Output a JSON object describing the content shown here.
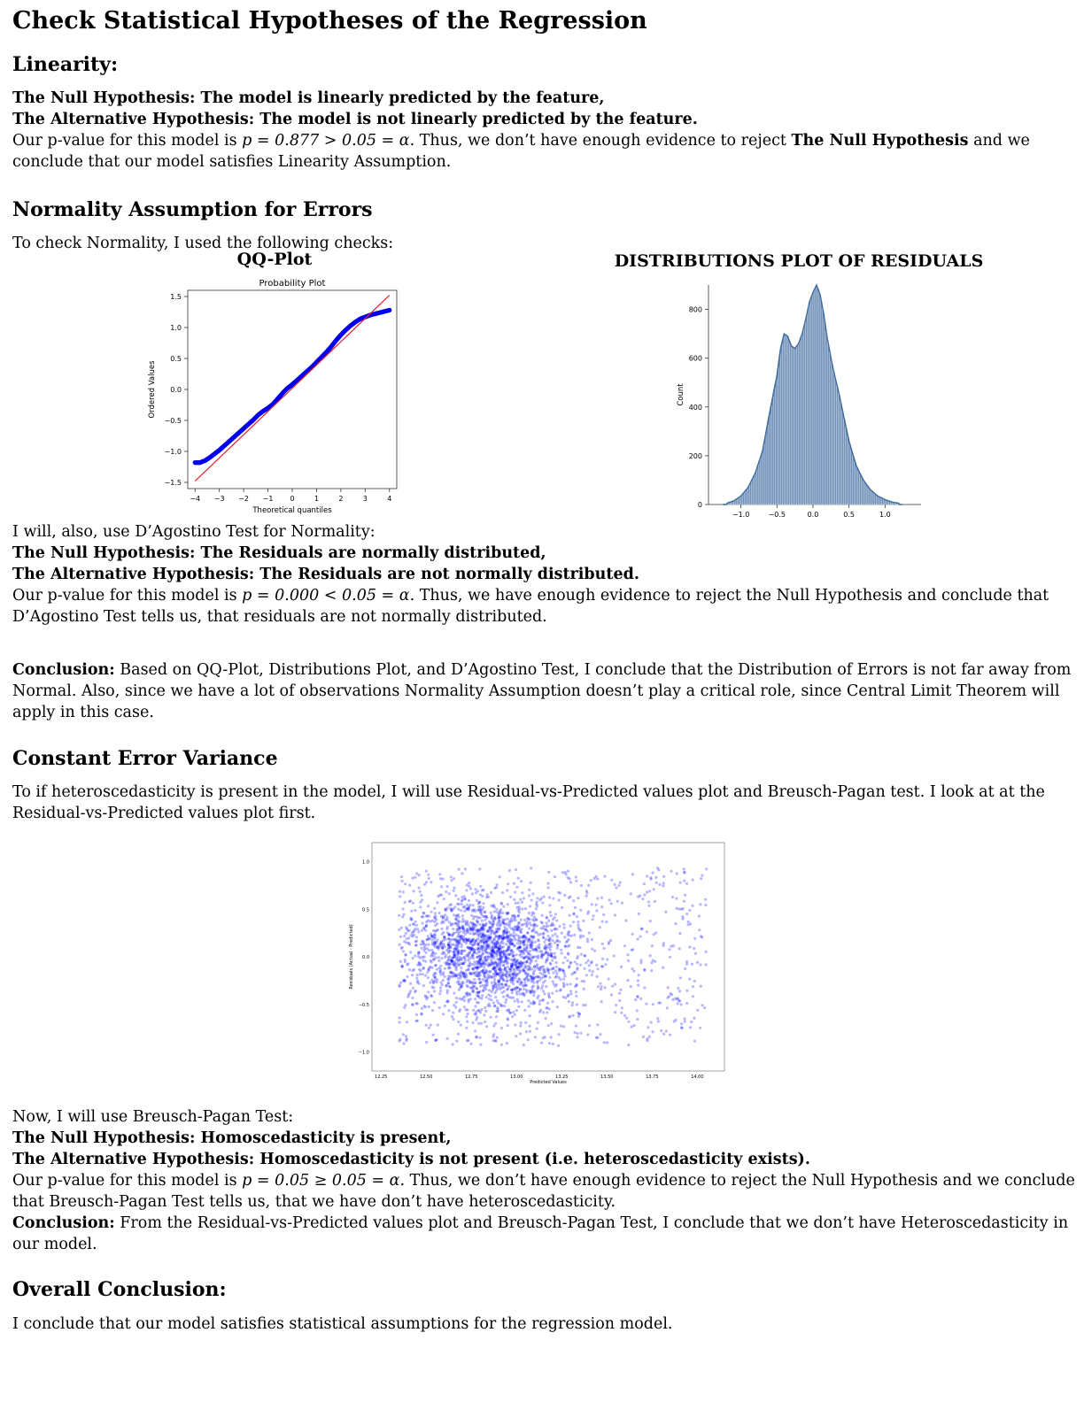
{
  "title": "Check Statistical Hypotheses of the Regression",
  "linearity": {
    "heading": "Linearity:",
    "null_label": "The Null Hypothesis:",
    "null_text": "The model is linearly predicted by the feature,",
    "alt_label": "The Alternative Hypothesis:",
    "alt_text": "The model is not linearly predicted by the feature.",
    "p_line1_pre": "Our p-value for this model is ",
    "p_math": "p = 0.877 > 0.05 = α.",
    "p_line1_post": " Thus, we don’t have enough evidence to reject ",
    "p_line1_bold": "The Null Hypothesis",
    "p_line1_end": " and we",
    "p_line2": "conclude that our model satisfies Linearity Assumption."
  },
  "normality": {
    "heading": "Normality Assumption for Errors",
    "intro": "To check Normality, I used the following checks:",
    "qq_title": "QQ-Plot",
    "dist_title": "DISTRIBUTIONS PLOT OF RESIDUALS",
    "dagostino_intro": "I will, also, use D’Agostino Test for Normality:",
    "null_label": "The Null Hypothesis:",
    "null_text": "The Residuals are normally distributed,",
    "alt_label": "The Alternative Hypothesis:",
    "alt_text": "The Residuals are not normally distributed.",
    "p_line1_pre": "Our p-value for this model is ",
    "p_math": "p = 0.000 < 0.05 = α.",
    "p_line1_post": " Thus, we have enough evidence to reject the Null Hypothesis and conclude that",
    "p_line2": "D’Agostino Test tells us, that residuals are not normally distributed.",
    "conclusion_label": "Conclusion:",
    "conclusion_line1": " Based on QQ-Plot, Distributions Plot, and D’Agostino Test, I conclude that the Distribution of Errors is not far away from",
    "conclusion_line2": "Normal. Also, since we have a lot of observations Normality Assumption doesn’t play a critical role, since Central Limit Theorem will",
    "conclusion_line3": "apply in this case."
  },
  "variance": {
    "heading": "Constant Error Variance",
    "intro_line1": "To if heteroscedasticity is present in the model, I will use Residual-vs-Predicted values plot and Breusch-Pagan test. I look at at the",
    "intro_line2": "Residual-vs-Predicted values plot first.",
    "bp_intro": "Now, I will use Breusch-Pagan Test:",
    "null_label": "The Null Hypothesis:",
    "null_text": "Homoscedasticity is present,",
    "alt_label": "The Alternative Hypothesis:",
    "alt_text": "Homoscedasticity is not present (i.e. heteroscedasticity exists).",
    "p_line1_pre": "Our p-value for this model is ",
    "p_math": "p = 0.05 ≥ 0.05 = α.",
    "p_line1_post": " Thus, we don’t have enough evidence to reject the Null Hypothesis and we conclude",
    "p_line2": "that Breusch-Pagan Test tells us, that we have don’t have heteroscedasticity.",
    "conclusion_label": "Conclusion:",
    "conclusion_line1": " From the Residual-vs-Predicted values plot and Breusch-Pagan Test, I conclude that we don’t have Heteroscedasticity in",
    "conclusion_line2": "our model."
  },
  "overall": {
    "heading": "Overall Conclusion:",
    "text": "I conclude that our model satisfies statistical assumptions for the regression model."
  },
  "chart_data": [
    {
      "type": "scatter",
      "title": "Probability Plot",
      "xlabel": "Theoretical quantiles",
      "ylabel": "Ordered Values",
      "xlim": [
        -4.3,
        4.3
      ],
      "ylim": [
        -1.6,
        1.6
      ],
      "xticks": [
        -4,
        -3,
        -2,
        -1,
        0,
        1,
        2,
        3,
        4
      ],
      "yticks": [
        -1.5,
        -1.0,
        -0.5,
        0.0,
        0.5,
        1.0,
        1.5
      ],
      "xtick_labels": [
        "−4",
        "−3",
        "−2",
        "−1",
        "0",
        "1",
        "2",
        "3",
        "4"
      ],
      "ytick_labels": [
        "−1.5",
        "−1.0",
        "−0.5",
        "0.0",
        "0.5",
        "1.0",
        "1.5"
      ],
      "reference_line": {
        "x": [
          -4,
          4
        ],
        "y": [
          -1.48,
          1.52
        ],
        "color": "#e32222"
      },
      "points": {
        "x": [
          -4.0,
          -3.8,
          -3.6,
          -3.4,
          -3.2,
          -3.0,
          -2.8,
          -2.6,
          -2.4,
          -2.2,
          -2.0,
          -1.8,
          -1.6,
          -1.4,
          -1.2,
          -1.0,
          -0.8,
          -0.6,
          -0.4,
          -0.2,
          0.0,
          0.2,
          0.4,
          0.6,
          0.8,
          1.0,
          1.2,
          1.4,
          1.6,
          1.8,
          2.0,
          2.2,
          2.4,
          2.6,
          2.8,
          3.0,
          3.2,
          3.4,
          3.6,
          3.8,
          4.0
        ],
        "y": [
          -1.18,
          -1.18,
          -1.15,
          -1.1,
          -1.04,
          -0.98,
          -0.91,
          -0.84,
          -0.77,
          -0.7,
          -0.63,
          -0.56,
          -0.49,
          -0.41,
          -0.35,
          -0.3,
          -0.24,
          -0.15,
          -0.06,
          0.02,
          0.08,
          0.15,
          0.22,
          0.29,
          0.36,
          0.44,
          0.52,
          0.6,
          0.69,
          0.79,
          0.88,
          0.96,
          1.03,
          1.09,
          1.14,
          1.17,
          1.2,
          1.22,
          1.24,
          1.26,
          1.28
        ],
        "color": "#0000ee"
      }
    },
    {
      "type": "bar",
      "title": "DISTRIBUTIONS PLOT OF RESIDUALS",
      "xlabel": "",
      "ylabel": "Count",
      "xlim": [
        -1.45,
        1.5
      ],
      "ylim": [
        0,
        900
      ],
      "xticks": [
        -1.0,
        -0.5,
        0.0,
        0.5,
        1.0
      ],
      "yticks": [
        0,
        200,
        400,
        600,
        800
      ],
      "xtick_labels": [
        "−1.0",
        "−0.5",
        "0.0",
        "0.5",
        "1.0"
      ],
      "ytick_labels": [
        "0",
        "200",
        "400",
        "600",
        "800"
      ],
      "bar_color": "#6f8fb8",
      "kde_color": "#3d6a9a",
      "bin_centers": [
        -1.2,
        -1.1,
        -1.0,
        -0.9,
        -0.8,
        -0.7,
        -0.6,
        -0.5,
        -0.45,
        -0.4,
        -0.35,
        -0.3,
        -0.25,
        -0.2,
        -0.15,
        -0.1,
        -0.05,
        0.0,
        0.05,
        0.1,
        0.15,
        0.2,
        0.25,
        0.3,
        0.35,
        0.4,
        0.5,
        0.6,
        0.7,
        0.8,
        0.9,
        1.0,
        1.1,
        1.2
      ],
      "counts": [
        5,
        15,
        35,
        70,
        130,
        220,
        380,
        530,
        640,
        700,
        690,
        650,
        640,
        660,
        700,
        760,
        830,
        870,
        900,
        860,
        780,
        680,
        600,
        530,
        470,
        400,
        260,
        160,
        100,
        60,
        35,
        20,
        10,
        5
      ]
    },
    {
      "type": "scatter",
      "title": "",
      "xlabel": "Predicted Values",
      "ylabel": "Residuals (Actual - Predicted)",
      "xlim": [
        12.2,
        14.15
      ],
      "ylim": [
        -1.2,
        1.2
      ],
      "xticks": [
        12.25,
        12.5,
        12.75,
        13.0,
        13.25,
        13.5,
        13.75,
        14.0
      ],
      "yticks": [
        -1.0,
        -0.5,
        0.0,
        0.5,
        1.0
      ],
      "xtick_labels": [
        "12.25",
        "12.50",
        "12.75",
        "13.00",
        "13.25",
        "13.50",
        "13.75",
        "14.00"
      ],
      "ytick_labels": [
        "−1.0",
        "−0.5",
        "0.0",
        "0.5",
        "1.0"
      ],
      "point_color": "#0000ff",
      "x_range": [
        12.35,
        14.05
      ],
      "y_range": [
        -1.1,
        1.1
      ],
      "dense_center": [
        12.85,
        0.05
      ]
    }
  ]
}
